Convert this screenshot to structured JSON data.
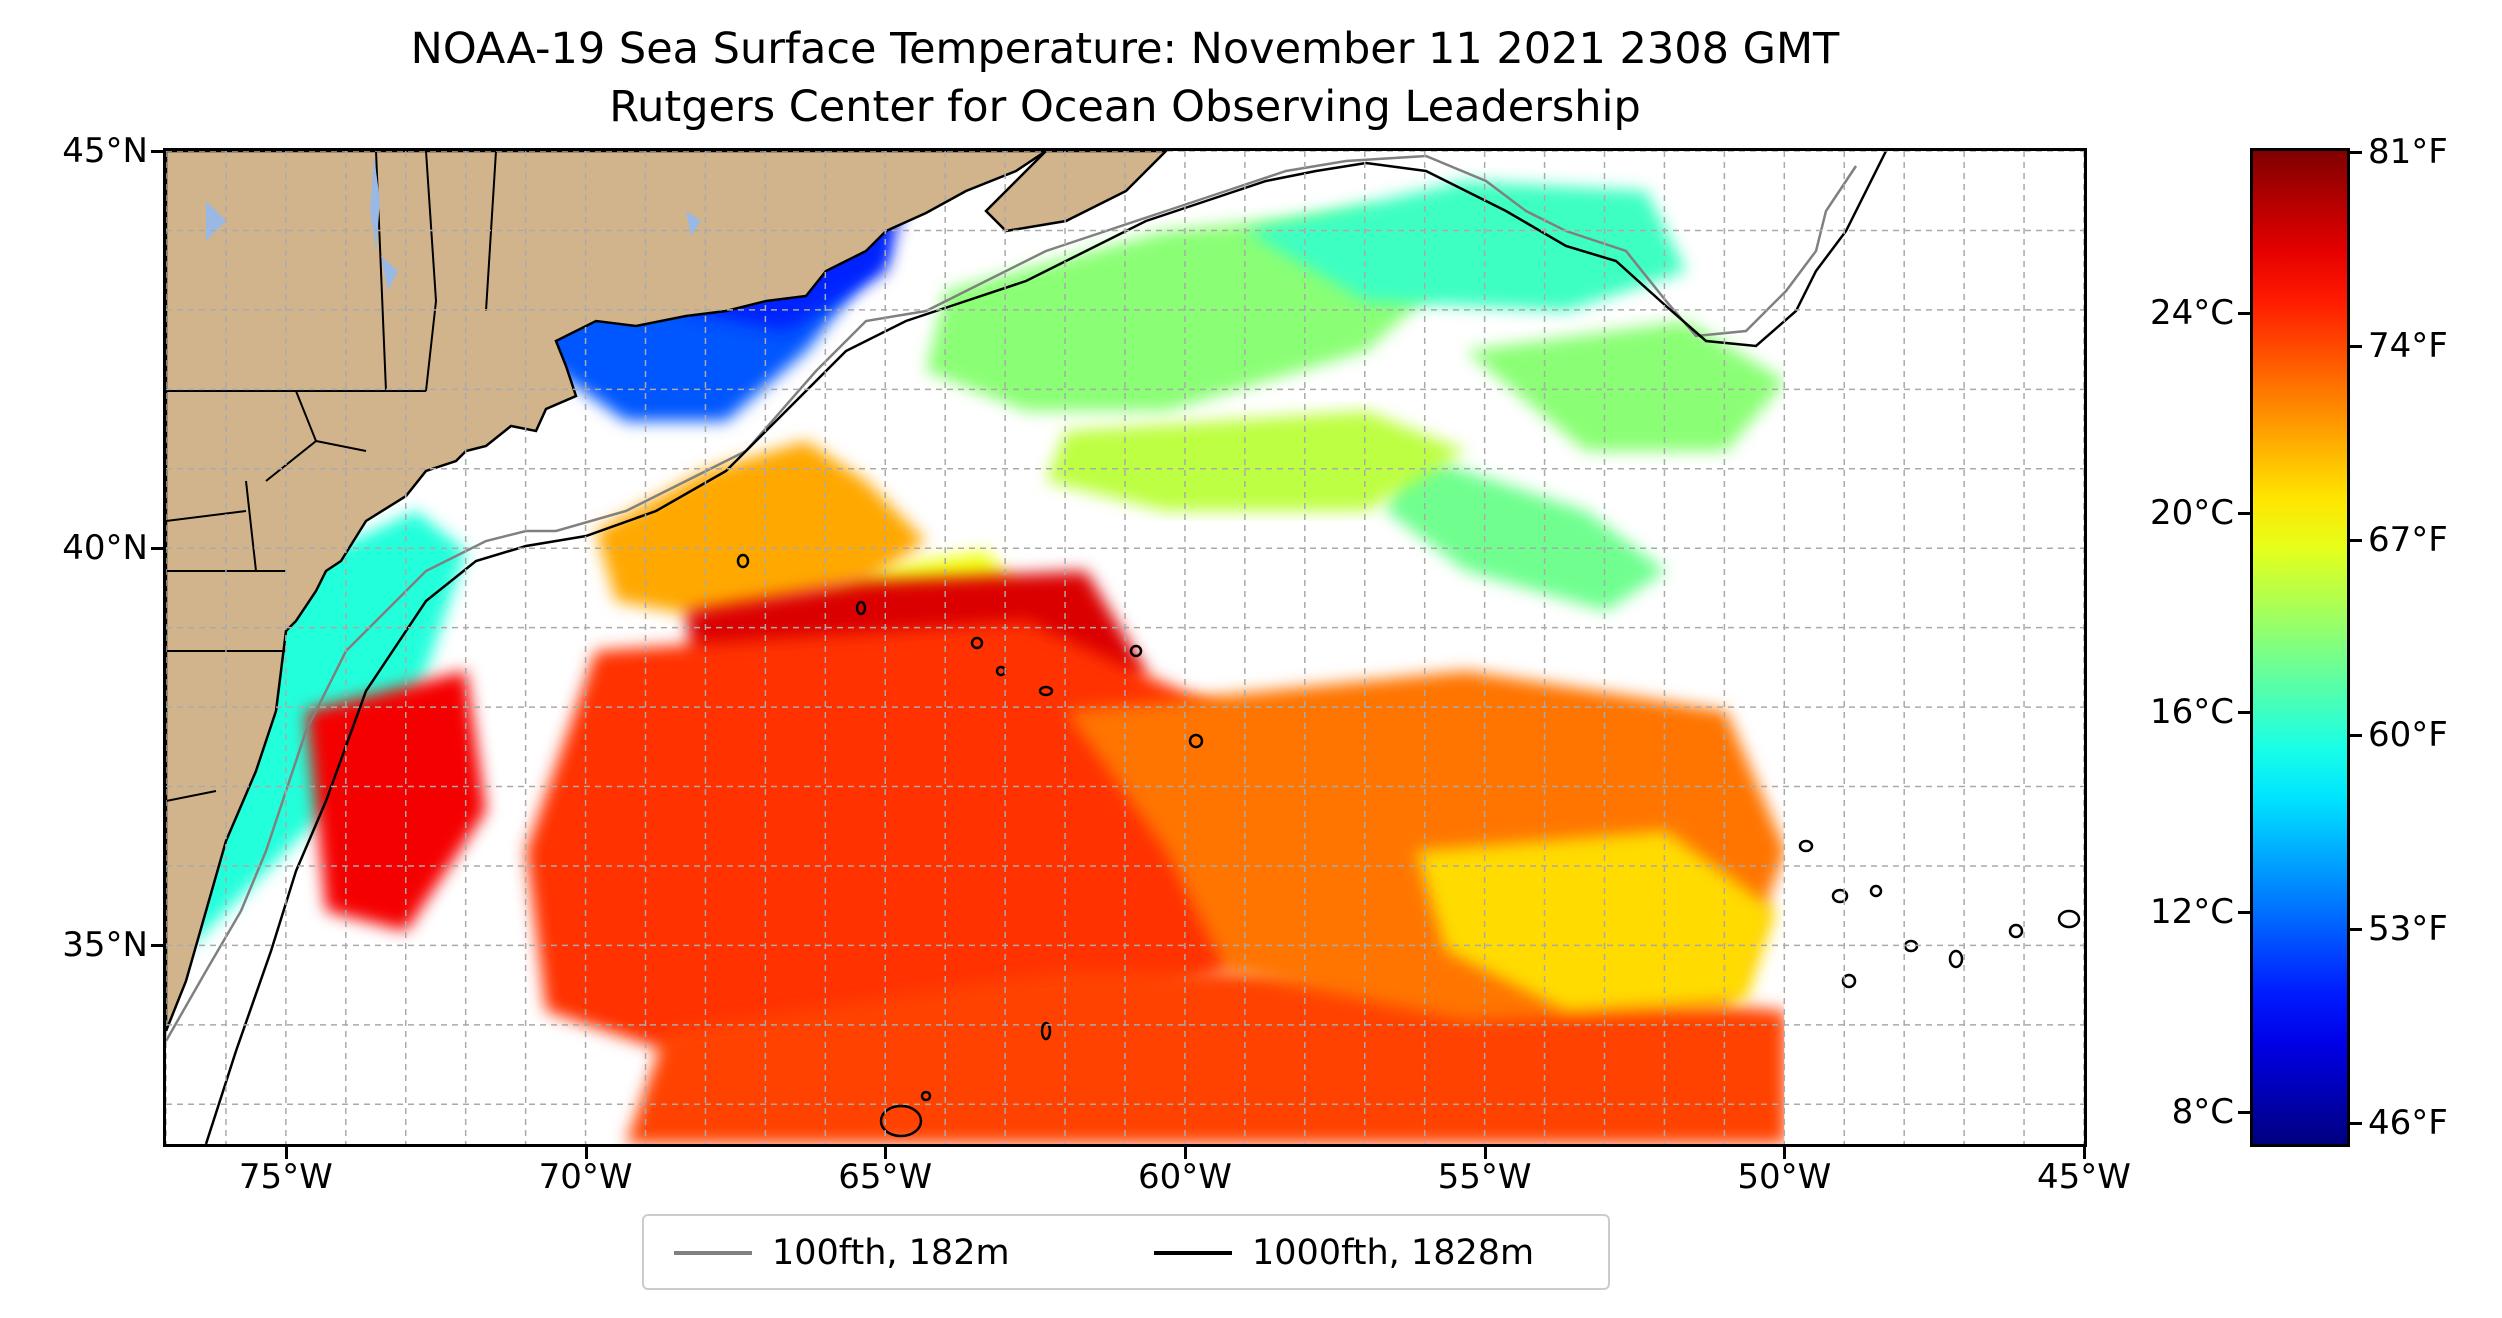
{
  "title": {
    "line1": "NOAA-19 Sea Surface Temperature: November 11 2021 2308 GMT",
    "line2": "Rutgers Center for Ocean Observing Leadership"
  },
  "map": {
    "lon_range": [
      -77,
      -45
    ],
    "lat_range": [
      32.5,
      45
    ],
    "lat_ticks": [
      {
        "value": 45,
        "label": "45°N"
      },
      {
        "value": 40,
        "label": "40°N"
      },
      {
        "value": 35,
        "label": "35°N"
      }
    ],
    "lon_ticks": [
      {
        "value": -75,
        "label": "75°W"
      },
      {
        "value": -70,
        "label": "70°W"
      },
      {
        "value": -65,
        "label": "65°W"
      },
      {
        "value": -60,
        "label": "60°W"
      },
      {
        "value": -55,
        "label": "55°W"
      },
      {
        "value": -50,
        "label": "50°W"
      },
      {
        "value": -45,
        "label": "45°W"
      }
    ],
    "gridlines": true,
    "data_coverage_east_limit_lon": -50,
    "land_color": "#d2b48c",
    "lake_color": "#9ab8e4",
    "isobath_100_color": "#808080",
    "isobath_1000_color": "#000000"
  },
  "legend": {
    "placement": "bottom-center",
    "entries": [
      {
        "label": "100fth, 182m",
        "color": "#808080"
      },
      {
        "label": "1000fth, 1828m",
        "color": "#000000"
      }
    ]
  },
  "colorbar": {
    "colormap": "jet",
    "celsius_range": [
      7.3,
      27.3
    ],
    "celsius_ticks": [
      {
        "value": 24,
        "label": "24°C"
      },
      {
        "value": 20,
        "label": "20°C"
      },
      {
        "value": 16,
        "label": "16°C"
      },
      {
        "value": 12,
        "label": "12°C"
      },
      {
        "value": 8,
        "label": "8°C"
      }
    ],
    "fahrenheit_ticks": [
      {
        "value": 81,
        "label": "81°F"
      },
      {
        "value": 74,
        "label": "74°F"
      },
      {
        "value": 67,
        "label": "67°F"
      },
      {
        "value": 60,
        "label": "60°F"
      },
      {
        "value": 53,
        "label": "53°F"
      },
      {
        "value": 46,
        "label": "46°F"
      }
    ]
  }
}
